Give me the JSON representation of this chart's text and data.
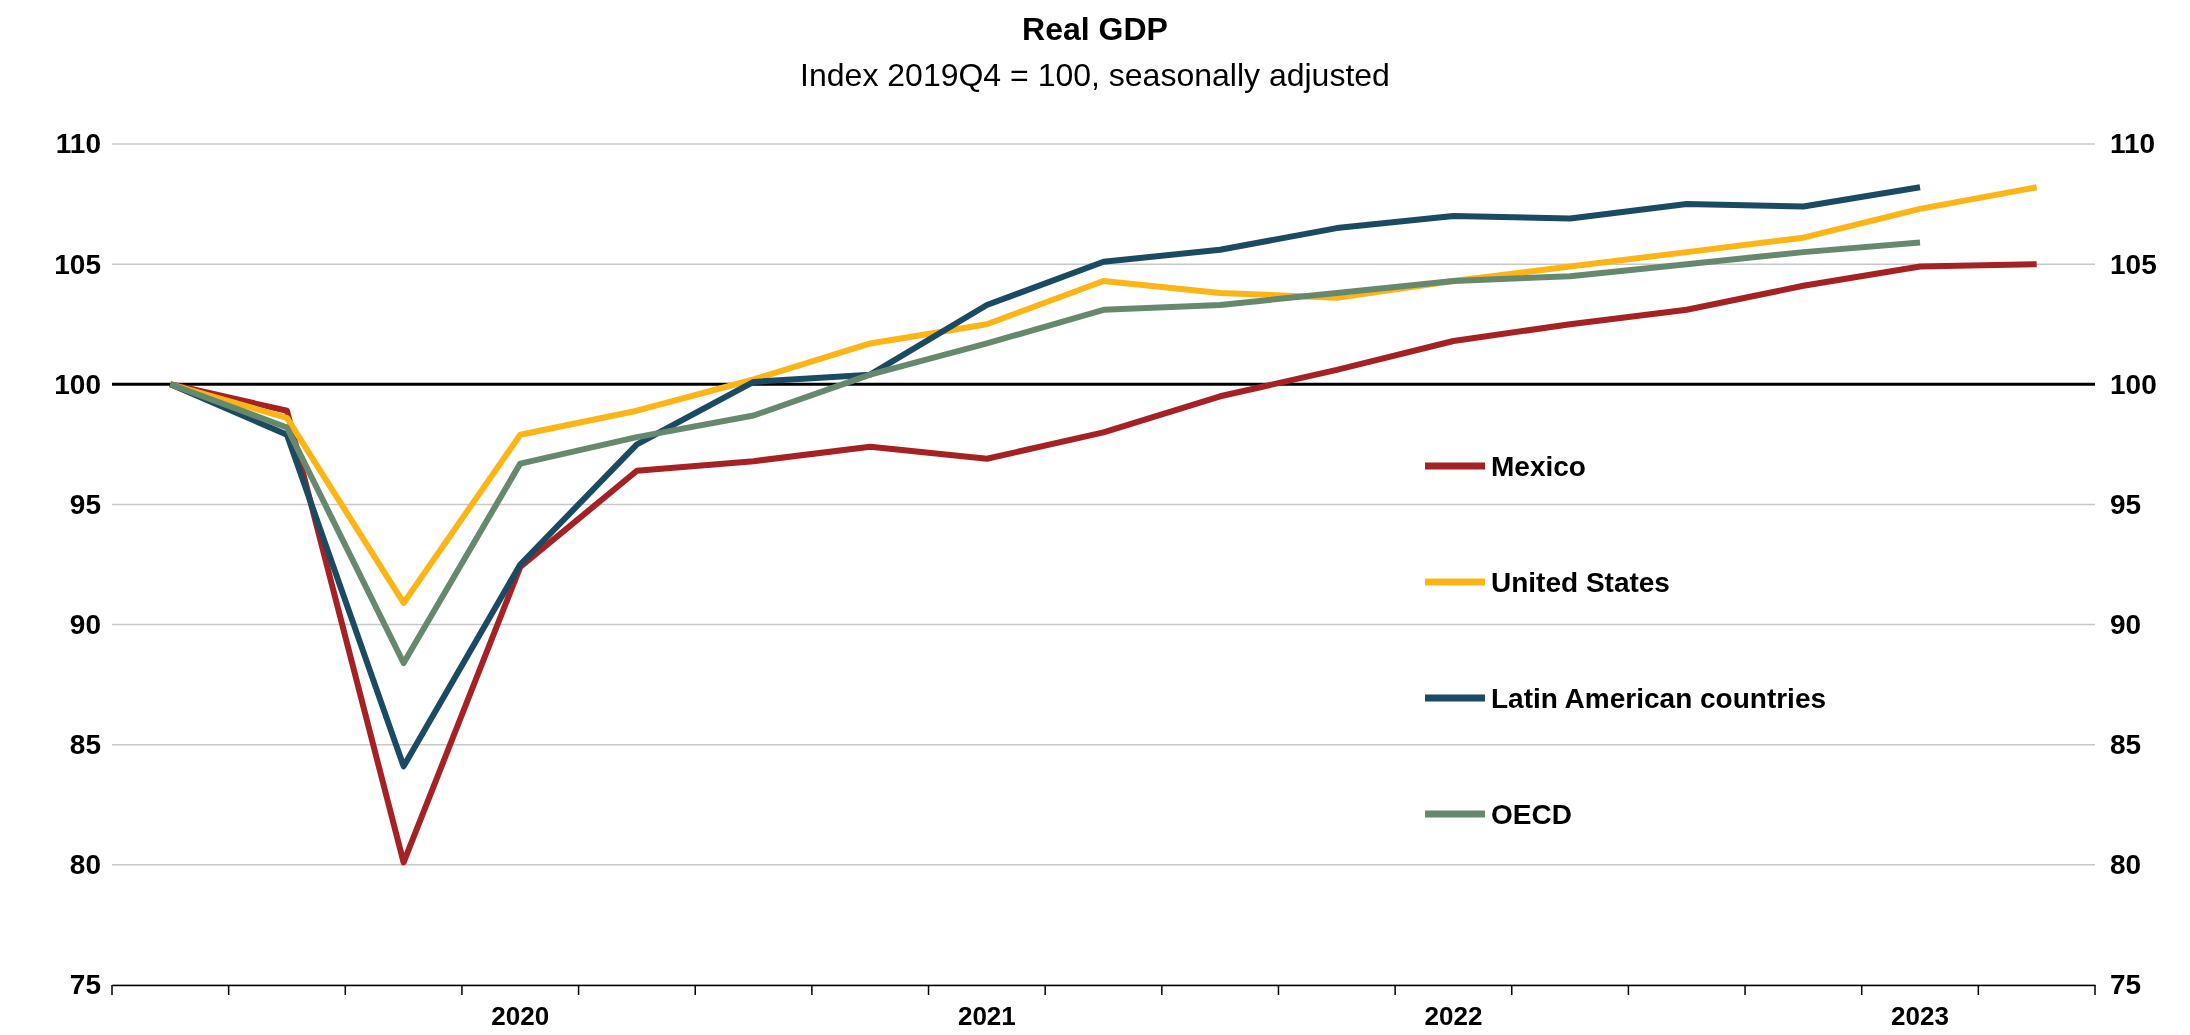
{
  "chart_data": {
    "type": "line",
    "title": "Real GDP",
    "subtitle": "Index 2019Q4 = 100, seasonally adjusted",
    "categories": [
      null,
      null,
      null,
      "2020",
      null,
      null,
      null,
      "2021",
      null,
      null,
      null,
      "2022",
      null,
      null,
      null,
      "2023",
      null
    ],
    "series": [
      {
        "name": "Mexico",
        "color": "#a52124",
        "values": [
          100,
          98.9,
          80.1,
          92.4,
          96.4,
          96.8,
          97.4,
          96.9,
          98.0,
          99.5,
          100.6,
          101.8,
          102.5,
          103.1,
          104.1,
          104.9,
          105.0
        ]
      },
      {
        "name": "United States",
        "color": "#fdb515",
        "values": [
          100,
          98.6,
          90.9,
          97.9,
          98.9,
          100.2,
          101.7,
          102.5,
          104.3,
          103.8,
          103.6,
          104.3,
          104.9,
          105.5,
          106.1,
          107.3,
          108.2
        ]
      },
      {
        "name": "Latin American countries",
        "color": "#1b4a63",
        "values": [
          100,
          97.9,
          84.1,
          92.5,
          97.5,
          100.1,
          100.4,
          103.3,
          105.1,
          105.6,
          106.5,
          107.0,
          106.9,
          107.5,
          107.4,
          108.2,
          null
        ]
      },
      {
        "name": "OECD",
        "color": "#66896e",
        "values": [
          100,
          98.2,
          88.4,
          96.7,
          97.8,
          98.7,
          100.4,
          101.7,
          103.1,
          103.3,
          103.8,
          104.3,
          104.5,
          105.0,
          105.5,
          105.9,
          null
        ]
      }
    ],
    "ylim": [
      75,
      110
    ],
    "yticks": [
      75,
      80,
      85,
      90,
      95,
      100,
      105,
      110
    ],
    "y2lim": [
      75,
      110
    ],
    "y2ticks": [
      75,
      80,
      85,
      90,
      95,
      100,
      105,
      110
    ],
    "ref_lines": [
      {
        "axis": "y",
        "value": 100,
        "color": "#000000"
      }
    ],
    "grid": "y",
    "legend": "right",
    "marker": "none",
    "line_style": "solid"
  }
}
